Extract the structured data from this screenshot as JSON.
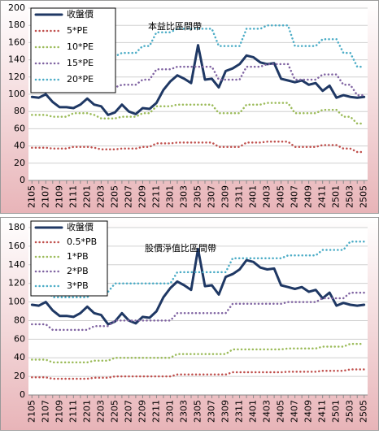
{
  "chart_data": [
    {
      "type": "line",
      "title": "本益比區間帶",
      "categories": [
        "2105",
        null,
        "2107",
        null,
        "2109",
        null,
        "2111",
        null,
        "2201",
        null,
        "2203",
        null,
        "2205",
        null,
        "2207",
        null,
        "2209",
        null,
        "2211",
        null,
        "2301",
        null,
        "2303",
        null,
        "2305",
        null,
        "2307",
        null,
        "2309",
        null,
        "2311",
        null,
        "2401",
        null,
        "2403",
        null,
        "2405",
        null,
        "2407",
        null,
        "2409",
        null,
        "2411",
        null,
        "2501",
        null,
        "2503",
        null,
        "2505"
      ],
      "series": [
        {
          "name": "收盤價",
          "color": "#1f3864",
          "values": [
            97,
            96,
            100,
            91,
            85,
            85,
            84,
            88,
            95,
            88,
            86,
            76,
            79,
            88,
            80,
            77,
            84,
            83,
            90,
            105,
            115,
            122,
            118,
            113,
            157,
            117,
            118,
            108,
            127,
            130,
            135,
            145,
            143,
            137,
            135,
            136,
            118,
            116,
            114,
            116,
            111,
            113,
            104,
            110,
            96,
            99,
            97,
            96,
            97
          ]
        },
        {
          "name": "5*PE",
          "color": "#c0504d",
          "values": [
            38,
            38,
            38,
            37,
            37,
            37,
            39,
            39,
            39,
            38,
            36,
            36,
            36,
            37,
            37,
            37,
            39,
            39,
            43,
            43,
            43,
            44,
            44,
            44,
            44,
            44,
            44,
            39,
            39,
            39,
            39,
            44,
            44,
            44,
            45,
            45,
            45,
            45,
            39,
            39,
            39,
            39,
            41,
            41,
            41,
            37,
            37,
            33,
            33
          ]
        },
        {
          "name": "10*PE",
          "color": "#9bbb59",
          "values": [
            76,
            76,
            76,
            74,
            74,
            74,
            78,
            78,
            78,
            76,
            72,
            72,
            72,
            74,
            74,
            74,
            78,
            78,
            86,
            86,
            86,
            88,
            88,
            88,
            88,
            88,
            88,
            78,
            78,
            78,
            78,
            88,
            88,
            88,
            90,
            90,
            90,
            90,
            78,
            78,
            78,
            78,
            82,
            82,
            82,
            74,
            74,
            66,
            66
          ]
        },
        {
          "name": "15*PE",
          "color": "#8064a2",
          "values": [
            114,
            114,
            114,
            111,
            111,
            111,
            117,
            117,
            117,
            114,
            108,
            108,
            108,
            111,
            111,
            111,
            117,
            117,
            129,
            129,
            129,
            132,
            132,
            132,
            132,
            132,
            132,
            117,
            117,
            117,
            117,
            132,
            132,
            132,
            135,
            135,
            135,
            135,
            117,
            117,
            117,
            117,
            123,
            123,
            123,
            111,
            111,
            99,
            99
          ]
        },
        {
          "name": "20*PE",
          "color": "#4bacc6",
          "values": [
            152,
            152,
            152,
            148,
            148,
            148,
            156,
            156,
            156,
            152,
            144,
            144,
            144,
            148,
            148,
            148,
            156,
            156,
            172,
            172,
            172,
            176,
            176,
            176,
            176,
            176,
            176,
            156,
            156,
            156,
            156,
            176,
            176,
            176,
            180,
            180,
            180,
            180,
            156,
            156,
            156,
            156,
            164,
            164,
            164,
            148,
            148,
            132,
            132
          ]
        }
      ],
      "ylim": [
        0,
        200
      ],
      "yticks": [
        0,
        20,
        40,
        60,
        80,
        100,
        120,
        140,
        160,
        180,
        200
      ],
      "grid": true
    },
    {
      "type": "line",
      "title": "股價淨值比區間帶",
      "categories": [
        "2105",
        null,
        "2107",
        null,
        "2109",
        null,
        "2111",
        null,
        "2201",
        null,
        "2203",
        null,
        "2205",
        null,
        "2207",
        null,
        "2209",
        null,
        "2211",
        null,
        "2301",
        null,
        "2303",
        null,
        "2305",
        null,
        "2307",
        null,
        "2309",
        null,
        "2311",
        null,
        "2401",
        null,
        "2403",
        null,
        "2405",
        null,
        "2407",
        null,
        "2409",
        null,
        "2411",
        null,
        "2501",
        null,
        "2503",
        null,
        "2505"
      ],
      "series": [
        {
          "name": "收盤價",
          "color": "#1f3864",
          "values": [
            97,
            96,
            100,
            91,
            85,
            85,
            84,
            88,
            95,
            88,
            86,
            76,
            79,
            88,
            80,
            77,
            84,
            83,
            90,
            105,
            115,
            122,
            118,
            113,
            157,
            117,
            118,
            108,
            127,
            130,
            135,
            145,
            143,
            137,
            135,
            136,
            118,
            116,
            114,
            116,
            111,
            113,
            104,
            110,
            96,
            99,
            97,
            96,
            97
          ]
        },
        {
          "name": "0.5*PB",
          "color": "#c0504d",
          "values": [
            19,
            19,
            19,
            17.5,
            17.5,
            17.5,
            17.5,
            17.5,
            17.5,
            18.5,
            18.5,
            18.5,
            20,
            20,
            20,
            20,
            20,
            20,
            20,
            20,
            20,
            22,
            22,
            22,
            22,
            22,
            22,
            22,
            22,
            24.5,
            24.5,
            24.5,
            24.5,
            24.5,
            24.5,
            24.5,
            24.5,
            25,
            25,
            25,
            25,
            25,
            26,
            26,
            26,
            26,
            27.5,
            27.5,
            27.5
          ]
        },
        {
          "name": "1*PB",
          "color": "#9bbb59",
          "values": [
            38,
            38,
            38,
            35,
            35,
            35,
            35,
            35,
            35,
            37,
            37,
            37,
            40,
            40,
            40,
            40,
            40,
            40,
            40,
            40,
            40,
            44,
            44,
            44,
            44,
            44,
            44,
            44,
            44,
            49,
            49,
            49,
            49,
            49,
            49,
            49,
            49,
            50,
            50,
            50,
            50,
            50,
            52,
            52,
            52,
            52,
            55,
            55,
            55
          ]
        },
        {
          "name": "2*PB",
          "color": "#8064a2",
          "values": [
            76,
            76,
            76,
            70,
            70,
            70,
            70,
            70,
            70,
            74,
            74,
            74,
            80,
            80,
            80,
            80,
            80,
            80,
            80,
            80,
            80,
            88,
            88,
            88,
            88,
            88,
            88,
            88,
            88,
            98,
            98,
            98,
            98,
            98,
            98,
            98,
            98,
            100,
            100,
            100,
            100,
            100,
            104,
            104,
            104,
            104,
            110,
            110,
            110
          ]
        },
        {
          "name": "3*PB",
          "color": "#4bacc6",
          "values": [
            114,
            114,
            114,
            105,
            105,
            105,
            105,
            105,
            105,
            111,
            111,
            111,
            120,
            120,
            120,
            120,
            120,
            120,
            120,
            120,
            120,
            132,
            132,
            132,
            132,
            132,
            132,
            132,
            132,
            147,
            147,
            147,
            147,
            147,
            147,
            147,
            147,
            150,
            150,
            150,
            150,
            150,
            156,
            156,
            156,
            156,
            165,
            165,
            165
          ]
        }
      ],
      "ylim": [
        0,
        180
      ],
      "yticks": [
        0,
        20,
        40,
        60,
        80,
        100,
        120,
        140,
        160,
        180
      ],
      "grid": true
    }
  ]
}
